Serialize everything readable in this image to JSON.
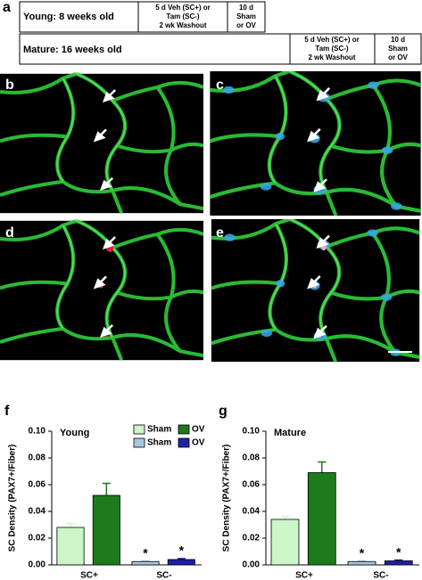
{
  "panel_a": {
    "label": "a",
    "rows": [
      {
        "cells": [
          {
            "lines": [
              "Young: 8 weeks old"
            ]
          },
          {
            "lines": [
              "5 d Veh (SC+) or",
              "Tam (SC-)",
              "2 wk Washout"
            ]
          },
          {
            "lines": [
              "10 d",
              "Sham",
              "or OV"
            ]
          }
        ]
      },
      {
        "cells": [
          {
            "lines": [
              "Mature: 16 weeks old"
            ]
          },
          {
            "lines": [
              "5 d Veh (SC+) or",
              "Tam (SC-)",
              "2 wk Washout"
            ]
          },
          {
            "lines": [
              "10 d",
              "Sham",
              "or OV"
            ]
          }
        ]
      }
    ]
  },
  "image_panels": [
    "b",
    "c",
    "d",
    "e"
  ],
  "chart_data": [
    {
      "type": "bar",
      "panel": "f",
      "title": "Young",
      "ylabel": "SC Density (PAX7+/Fiber)",
      "categories": [
        "SC+",
        "SC-"
      ],
      "ylim": [
        0,
        0.1
      ],
      "yticks": [
        {
          "value": 0,
          "label": "0.00"
        },
        {
          "value": 0.02,
          "label": "0.02"
        },
        {
          "value": 0.04,
          "label": "0.04"
        },
        {
          "value": 0.06,
          "label": "0.06"
        },
        {
          "value": 0.08,
          "label": "0.08"
        },
        {
          "value": 0.1,
          "label": "0.10"
        }
      ],
      "legend": true,
      "series": [
        {
          "name": "Sham",
          "color": "#ccf5c8",
          "values": [
            0.028,
            null
          ],
          "errors": [
            0.003,
            null
          ]
        },
        {
          "name": "OV",
          "color": "#1d7a1d",
          "values": [
            0.052,
            null
          ],
          "errors": [
            0.009,
            null
          ]
        },
        {
          "name": "Sham",
          "color": "#a9c6df",
          "values": [
            null,
            0.0025
          ],
          "errors": [
            null,
            0.0003
          ],
          "annotation": "*"
        },
        {
          "name": "OV",
          "color": "#1f1fa6",
          "values": [
            null,
            0.004
          ],
          "errors": [
            null,
            0.0007
          ],
          "annotation": "*"
        }
      ]
    },
    {
      "type": "bar",
      "panel": "g",
      "title": "Mature",
      "ylabel": "SC Density (PAX7+/Fiber)",
      "categories": [
        "SC+",
        "SC-"
      ],
      "ylim": [
        0,
        0.1
      ],
      "yticks": [
        {
          "value": 0,
          "label": "0.00"
        },
        {
          "value": 0.02,
          "label": "0.02"
        },
        {
          "value": 0.04,
          "label": "0.04"
        },
        {
          "value": 0.06,
          "label": "0.06"
        },
        {
          "value": 0.08,
          "label": "0.08"
        },
        {
          "value": 0.1,
          "label": "0.10"
        }
      ],
      "legend": false,
      "series": [
        {
          "color": "#ccf5c8",
          "values": [
            0.034,
            null
          ],
          "errors": [
            0.002,
            null
          ]
        },
        {
          "color": "#1d7a1d",
          "values": [
            0.069,
            null
          ],
          "errors": [
            0.008,
            null
          ]
        },
        {
          "color": "#a9c6df",
          "values": [
            null,
            0.0025
          ],
          "errors": [
            null,
            0.0003
          ],
          "annotation": "*"
        },
        {
          "color": "#1f1fa6",
          "values": [
            null,
            0.003
          ],
          "errors": [
            null,
            0.0006
          ],
          "annotation": "*"
        }
      ]
    }
  ]
}
